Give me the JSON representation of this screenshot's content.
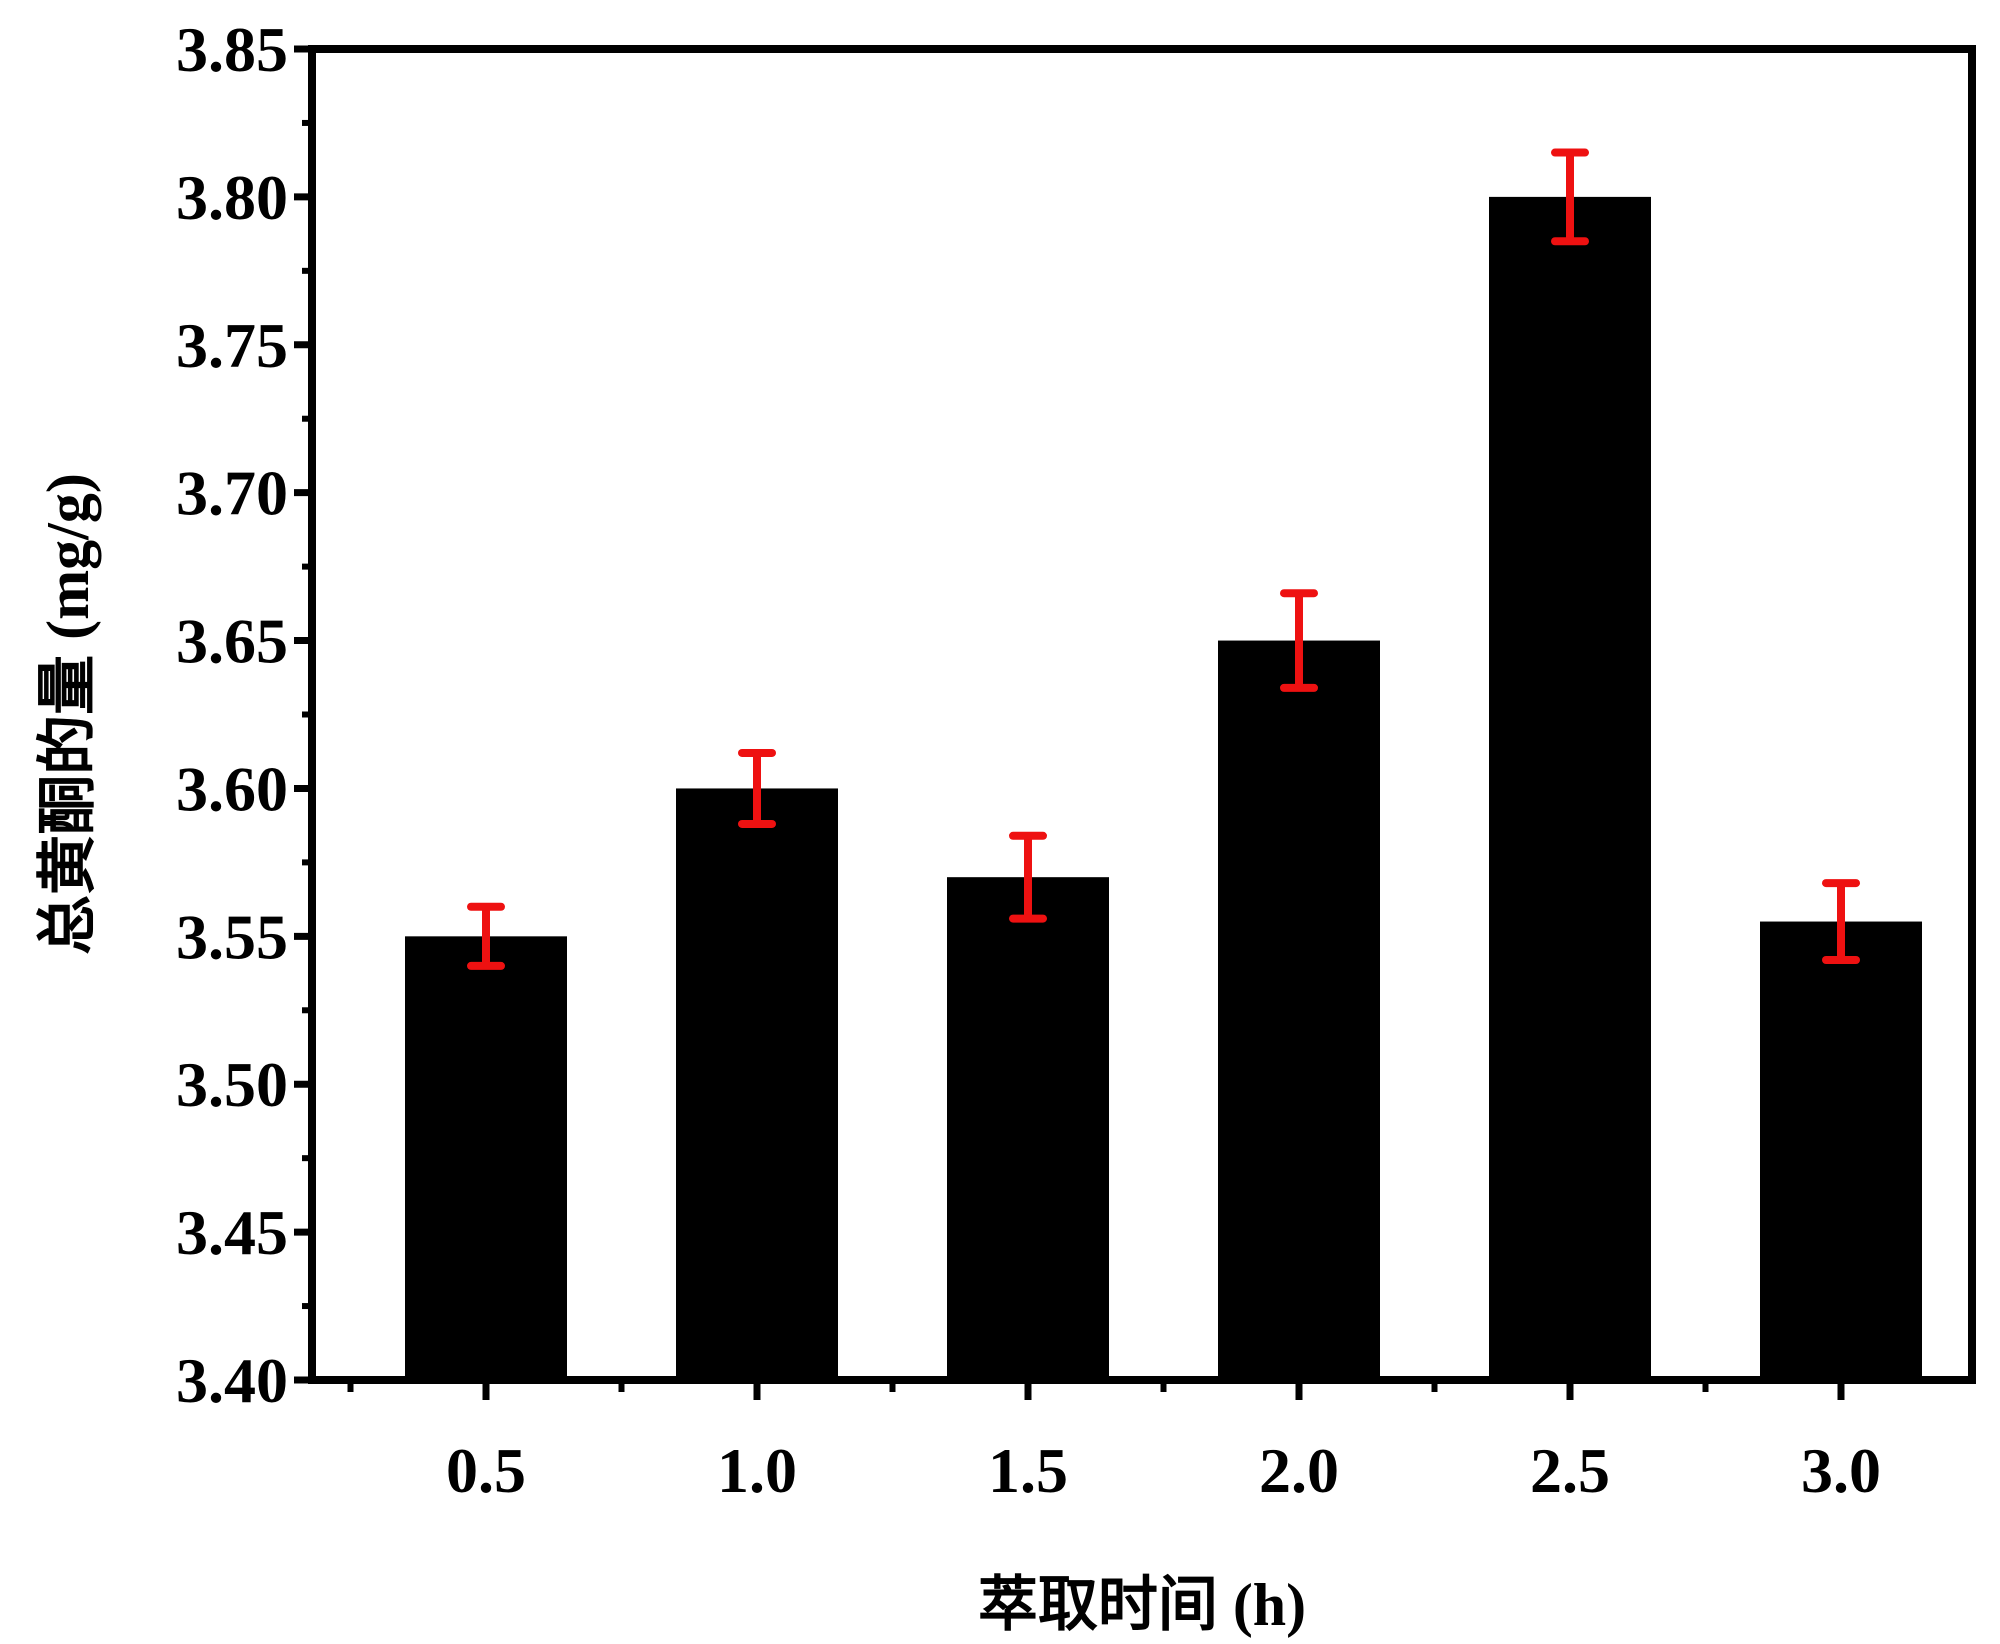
{
  "chart_data": {
    "type": "bar",
    "title": "",
    "xlabel": "萃取时间 (h)",
    "ylabel": "总黄酮的量 (mg/g)",
    "categories": [
      "0.5",
      "1.0",
      "1.5",
      "2.0",
      "2.5",
      "3.0"
    ],
    "values": [
      3.55,
      3.6,
      3.57,
      3.65,
      3.8,
      3.555
    ],
    "errors": [
      0.01,
      0.012,
      0.014,
      0.016,
      0.015,
      0.013
    ],
    "ylim": [
      3.4,
      3.85
    ],
    "yticks": [
      "3.40",
      "3.45",
      "3.50",
      "3.55",
      "3.60",
      "3.65",
      "3.70",
      "3.75",
      "3.80",
      "3.85"
    ],
    "grid": false,
    "legend": "none",
    "colors": {
      "bar": "#000000",
      "error_bar": "#ee1111",
      "axis": "#000000"
    }
  }
}
